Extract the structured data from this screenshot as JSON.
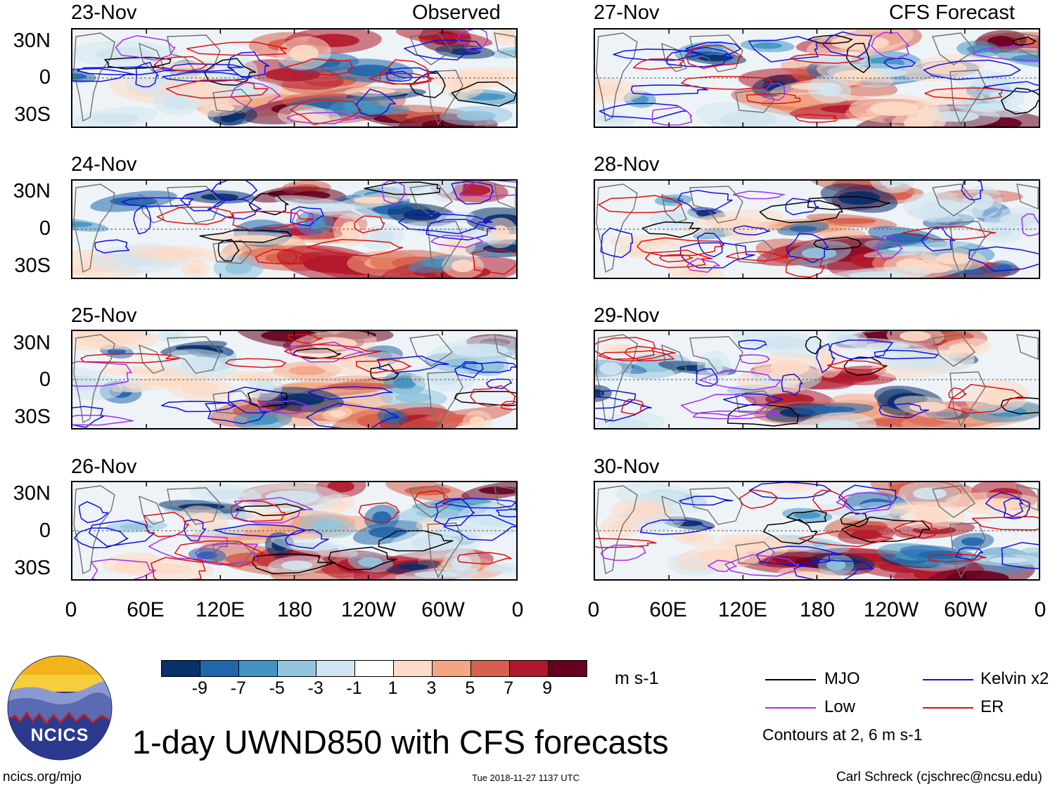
{
  "chart_data": {
    "type": "heatmap",
    "title": "1-day UWND850 with CFS forecasts",
    "variable": "UWND850",
    "units": "m s-1",
    "x_ticks": [
      "0",
      "60E",
      "120E",
      "180",
      "120W",
      "60W",
      "0"
    ],
    "y_ticks": [
      "30N",
      "0",
      "30S"
    ],
    "columns": [
      {
        "label": "Observed",
        "source": "Observed"
      },
      {
        "label": "CFS Forecast",
        "source": "CFS"
      }
    ],
    "panels": [
      {
        "date": "23-Nov",
        "source": "Observed",
        "header": "Observed"
      },
      {
        "date": "24-Nov",
        "source": "Observed"
      },
      {
        "date": "25-Nov",
        "source": "Observed"
      },
      {
        "date": "26-Nov",
        "source": "Observed"
      },
      {
        "date": "27-Nov",
        "source": "CFS",
        "header": "CFS Forecast"
      },
      {
        "date": "28-Nov",
        "source": "CFS"
      },
      {
        "date": "29-Nov",
        "source": "CFS"
      },
      {
        "date": "30-Nov",
        "source": "CFS"
      }
    ],
    "colorbar": {
      "labels": [
        "-9",
        "-7",
        "-5",
        "-3",
        "-1",
        "1",
        "3",
        "5",
        "7",
        "9"
      ],
      "colors": [
        "#08306b",
        "#2166ac",
        "#4393c3",
        "#92c5de",
        "#d1e5f0",
        "#ffffff",
        "#fddbc7",
        "#f4a582",
        "#d6604d",
        "#b2182b",
        "#67001f"
      ],
      "units": "m s-1"
    },
    "contours": {
      "series": [
        {
          "name": "MJO",
          "color": "#000000"
        },
        {
          "name": "Kelvin x2",
          "color": "#1010e0"
        },
        {
          "name": "Low",
          "color": "#a030f0"
        },
        {
          "name": "ER",
          "color": "#e01010"
        }
      ],
      "levels_note": "Contours at 2, 6 m s-1"
    }
  },
  "branding": {
    "logo_text": "NCICS",
    "site": "ncics.org/mjo",
    "timestamp": "Tue 2018-11-27 1137 UTC",
    "author": "Carl Schreck (cjschrec@ncsu.edu)"
  }
}
